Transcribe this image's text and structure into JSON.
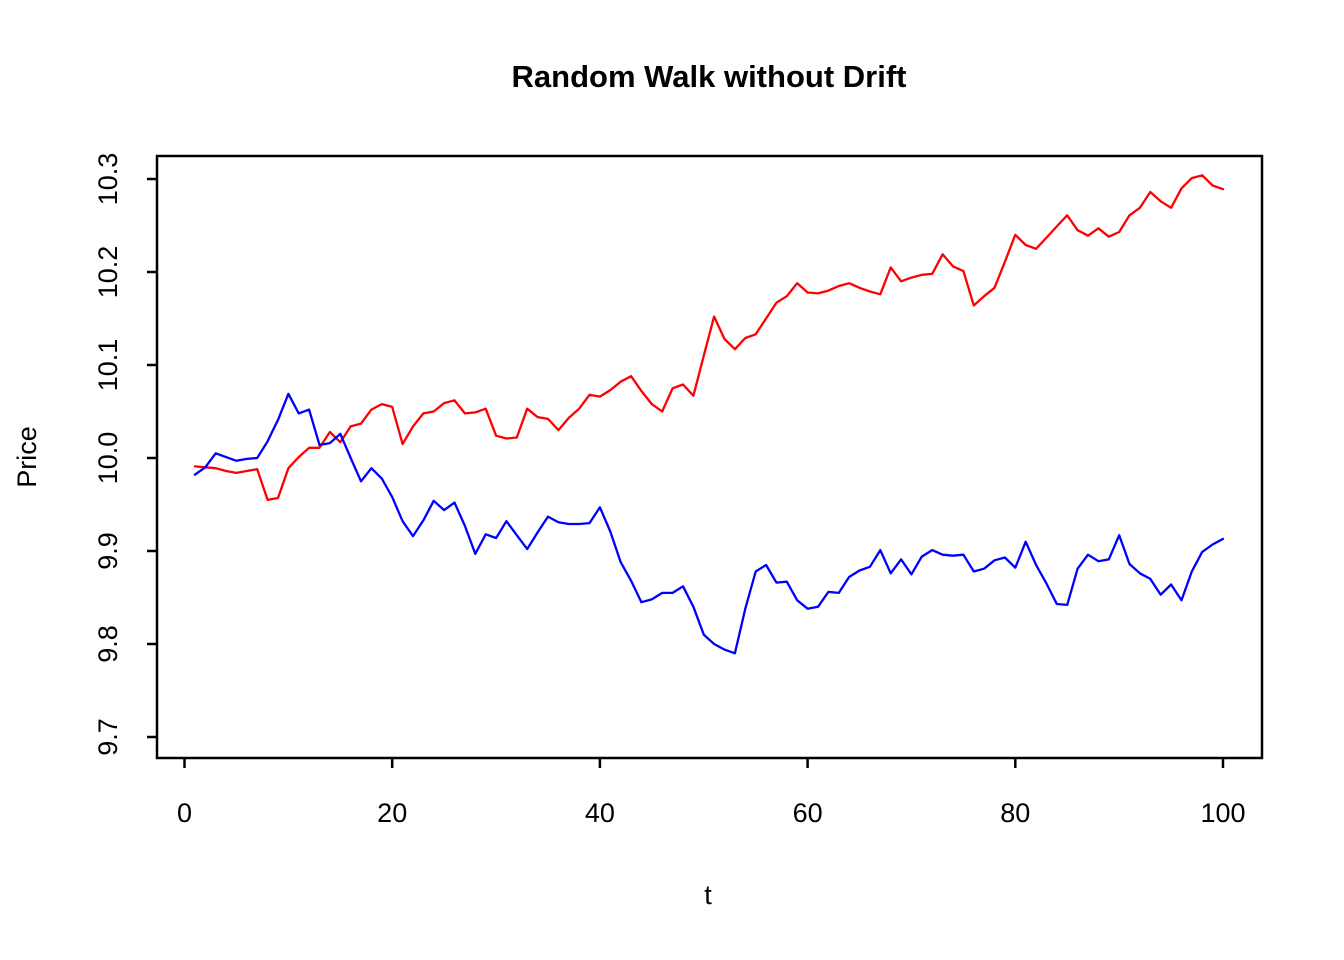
{
  "chart_data": {
    "type": "line",
    "title": "Random Walk without Drift",
    "xlabel": "t",
    "ylabel": "Price",
    "x_ticks": [
      0,
      20,
      40,
      60,
      80,
      100
    ],
    "y_tick_labels": [
      "9.7",
      "9.8",
      "9.9",
      "10.0",
      "10.1",
      "10.2",
      "10.3"
    ],
    "xlim": [
      -2.65,
      103.75
    ],
    "ylim": [
      9.674,
      10.325
    ],
    "grid": false,
    "legend": "none",
    "axis_color": "#000000",
    "background_color": "#ffffff",
    "x": [
      1,
      2,
      3,
      4,
      5,
      6,
      7,
      8,
      9,
      10,
      11,
      12,
      13,
      14,
      15,
      16,
      17,
      18,
      19,
      20,
      21,
      22,
      23,
      24,
      25,
      26,
      27,
      28,
      29,
      30,
      31,
      32,
      33,
      34,
      35,
      36,
      37,
      38,
      39,
      40,
      41,
      42,
      43,
      44,
      45,
      46,
      47,
      48,
      49,
      50,
      51,
      52,
      53,
      54,
      55,
      56,
      57,
      58,
      59,
      60,
      61,
      62,
      63,
      64,
      65,
      66,
      67,
      68,
      69,
      70,
      71,
      72,
      73,
      74,
      75,
      76,
      77,
      78,
      79,
      80,
      81,
      82,
      83,
      84,
      85,
      86,
      87,
      88,
      89,
      90,
      91,
      92,
      93,
      94,
      95,
      96,
      97,
      98,
      99,
      100
    ],
    "series": [
      {
        "name": "random-walk-red",
        "color": "#FF0000",
        "values": [
          9.991,
          9.99,
          9.989,
          9.986,
          9.984,
          9.986,
          9.988,
          9.955,
          9.957,
          9.989,
          10.001,
          10.011,
          10.011,
          10.028,
          10.017,
          10.034,
          10.037,
          10.052,
          10.058,
          10.055,
          10.015,
          10.034,
          10.048,
          10.05,
          10.059,
          10.062,
          10.048,
          10.049,
          10.053,
          10.024,
          10.021,
          10.022,
          10.053,
          10.044,
          10.042,
          10.03,
          10.043,
          10.053,
          10.068,
          10.066,
          10.073,
          10.082,
          10.088,
          10.072,
          10.058,
          10.05,
          10.075,
          10.079,
          10.067,
          10.11,
          10.152,
          10.128,
          10.117,
          10.129,
          10.133,
          10.15,
          10.167,
          10.174,
          10.188,
          10.178,
          10.177,
          10.18,
          10.185,
          10.188,
          10.183,
          10.179,
          10.176,
          10.205,
          10.19,
          10.194,
          10.197,
          10.198,
          10.219,
          10.206,
          10.201,
          10.164,
          10.174,
          10.183,
          10.211,
          10.24,
          10.229,
          10.225,
          10.237,
          10.249,
          10.261,
          10.245,
          10.239,
          10.247,
          10.238,
          10.243,
          10.261,
          10.269,
          10.286,
          10.276,
          10.269,
          10.29,
          10.301,
          10.304,
          10.293,
          10.289
        ]
      },
      {
        "name": "random-walk-blue",
        "color": "#0000FF",
        "values": [
          9.982,
          9.99,
          10.005,
          10.001,
          9.997,
          9.999,
          10.0,
          10.018,
          10.041,
          10.069,
          10.048,
          10.052,
          10.014,
          10.016,
          10.026,
          10.0,
          9.975,
          9.989,
          9.978,
          9.958,
          9.932,
          9.916,
          9.933,
          9.954,
          9.944,
          9.952,
          9.927,
          9.897,
          9.918,
          9.914,
          9.932,
          9.917,
          9.902,
          9.92,
          9.937,
          9.931,
          9.929,
          9.929,
          9.93,
          9.947,
          9.921,
          9.888,
          9.868,
          9.845,
          9.848,
          9.855,
          9.855,
          9.862,
          9.84,
          9.81,
          9.8,
          9.794,
          9.79,
          9.838,
          9.878,
          9.885,
          9.866,
          9.867,
          9.847,
          9.838,
          9.84,
          9.856,
          9.855,
          9.872,
          9.879,
          9.883,
          9.901,
          9.876,
          9.891,
          9.875,
          9.894,
          9.901,
          9.896,
          9.895,
          9.896,
          9.878,
          9.881,
          9.89,
          9.893,
          9.882,
          9.91,
          9.885,
          9.865,
          9.843,
          9.842,
          9.881,
          9.896,
          9.889,
          9.891,
          9.917,
          9.886,
          9.876,
          9.87,
          9.853,
          9.864,
          9.847,
          9.878,
          9.899,
          9.907,
          9.913
        ]
      }
    ]
  }
}
